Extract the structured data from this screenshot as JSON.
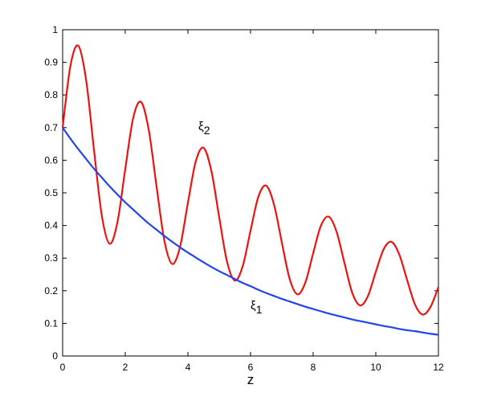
{
  "chart_data": {
    "type": "line",
    "x_label": "z",
    "x": [
      0,
      0.25,
      0.5,
      0.75,
      1,
      1.25,
      1.5,
      1.75,
      2,
      2.25,
      2.5,
      2.75,
      3,
      3.25,
      3.5,
      3.75,
      4,
      4.25,
      4.5,
      4.75,
      5,
      5.25,
      5.5,
      5.75,
      6,
      6.25,
      6.5,
      6.75,
      7,
      7.25,
      7.5,
      7.75,
      8,
      8.25,
      8.5,
      8.75,
      9,
      9.25,
      9.5,
      9.75,
      10,
      10.25,
      10.5,
      10.75,
      11,
      11.25,
      11.5,
      11.75,
      12
    ],
    "series": [
      {
        "color": "#ee1111",
        "values": [
          0.7,
          0.89,
          0.951,
          0.846,
          0.633,
          0.431,
          0.344,
          0.41,
          0.573,
          0.728,
          0.779,
          0.693,
          0.519,
          0.353,
          0.282,
          0.335,
          0.469,
          0.596,
          0.638,
          0.567,
          0.425,
          0.289,
          0.231,
          0.275,
          0.384,
          0.488,
          0.522,
          0.464,
          0.348,
          0.236,
          0.189,
          0.225,
          0.315,
          0.4,
          0.427,
          0.38,
          0.285,
          0.193,
          0.155,
          0.184,
          0.258,
          0.327,
          0.35,
          0.311,
          0.233,
          0.158,
          0.127,
          0.151,
          0.211
        ]
      },
      {
        "color": "#2244ee",
        "values": [
          0.7,
          0.666,
          0.634,
          0.604,
          0.574,
          0.547,
          0.52,
          0.495,
          0.471,
          0.449,
          0.427,
          0.406,
          0.387,
          0.368,
          0.35,
          0.333,
          0.317,
          0.302,
          0.287,
          0.273,
          0.26,
          0.248,
          0.236,
          0.224,
          0.214,
          0.203,
          0.193,
          0.184,
          0.175,
          0.167,
          0.159,
          0.151,
          0.144,
          0.137,
          0.13,
          0.124,
          0.118,
          0.112,
          0.107,
          0.102,
          0.097,
          0.092,
          0.088,
          0.083,
          0.079,
          0.076,
          0.072,
          0.068,
          0.065
        ]
      }
    ],
    "annotations": [
      {
        "symbol": "ξ",
        "subscript": "2"
      },
      {
        "symbol": "ξ",
        "subscript": "1"
      }
    ],
    "xlim": [
      0,
      12
    ],
    "xticks": [
      0,
      2,
      4,
      6,
      8,
      10,
      12
    ],
    "ylim": [
      0,
      1
    ],
    "yticks": [
      0,
      0.1,
      0.2,
      0.3,
      0.4,
      0.5,
      0.6,
      0.7,
      0.8,
      0.9,
      1
    ],
    "grid": false
  }
}
